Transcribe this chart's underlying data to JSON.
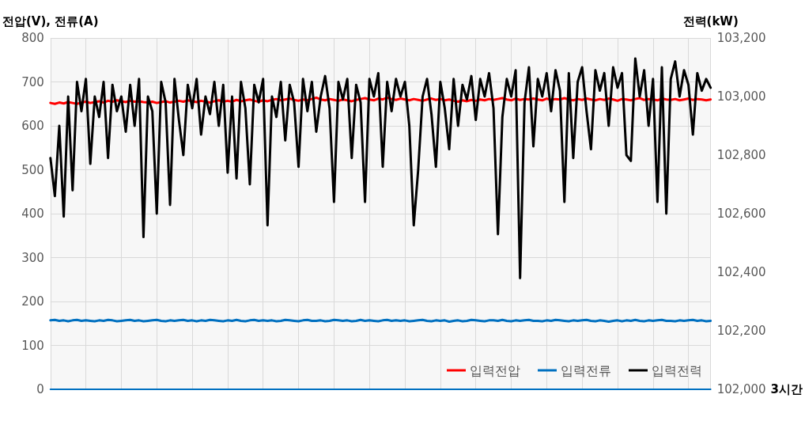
{
  "chart_data": {
    "type": "line",
    "ylabel": "전압(V), 전류(A)",
    "y2label": "전력(kW)",
    "xlabel": "3시간",
    "categories": [
      null,
      null,
      null,
      null,
      null,
      null,
      null,
      null,
      null,
      null,
      null,
      null,
      null,
      null,
      null,
      null,
      null,
      null,
      null,
      null,
      null,
      null,
      null,
      null,
      null,
      null,
      null,
      null,
      null,
      null,
      null,
      null,
      null,
      null,
      null,
      null,
      null,
      null,
      null,
      null,
      null,
      null,
      null,
      null,
      null,
      null,
      null,
      null,
      null,
      null,
      null,
      null,
      null,
      null,
      null,
      null,
      null,
      null,
      null,
      null,
      null,
      null,
      null,
      null,
      null,
      null,
      null,
      null,
      null,
      null,
      null,
      null,
      null,
      null,
      null,
      null,
      null,
      null,
      null,
      null,
      null,
      null,
      null,
      null,
      null,
      null,
      null,
      null,
      null,
      null,
      null,
      null,
      null,
      null,
      null,
      null,
      null,
      null,
      null,
      null,
      null,
      null,
      null,
      null,
      null,
      null,
      null,
      null,
      null,
      null,
      null,
      null,
      null,
      null,
      null,
      null,
      null,
      null,
      null,
      null,
      null,
      null,
      null,
      null,
      null,
      null,
      null,
      null,
      null,
      null,
      null,
      null,
      null,
      null,
      null,
      null,
      null,
      null,
      null,
      null,
      null,
      null,
      null,
      null,
      null,
      null,
      null,
      null,
      null,
      null
    ],
    "series": [
      {
        "name": "입력전압",
        "color": "#ff0000",
        "values": [
          652,
          650,
          653,
          651,
          654,
          652,
          650,
          653,
          655,
          652,
          654,
          656,
          653,
          657,
          655,
          658,
          656,
          654,
          657,
          655,
          656,
          654,
          653,
          655,
          652,
          654,
          656,
          653,
          655,
          657,
          655,
          658,
          656,
          654,
          657,
          655,
          653,
          656,
          658,
          655,
          657,
          655,
          659,
          656,
          658,
          660,
          657,
          655,
          658,
          656,
          659,
          661,
          658,
          660,
          662,
          659,
          657,
          660,
          658,
          661,
          664,
          660,
          658,
          661,
          659,
          657,
          660,
          658,
          656,
          659,
          661,
          663,
          660,
          658,
          662,
          660,
          664,
          661,
          659,
          662,
          660,
          658,
          661,
          659,
          657,
          660,
          662,
          659,
          661,
          658,
          660,
          657,
          655,
          658,
          656,
          659,
          657,
          660,
          658,
          661,
          659,
          661,
          663,
          660,
          658,
          662,
          659,
          661,
          660,
          662,
          660,
          658,
          662,
          659,
          661,
          660,
          663,
          660,
          658,
          661,
          659,
          662,
          660,
          658,
          661,
          659,
          662,
          660,
          657,
          661,
          660,
          658,
          661,
          663,
          659,
          661,
          660,
          658,
          662,
          660,
          659,
          661,
          658,
          660,
          662,
          659,
          661,
          660,
          658,
          660
        ]
      },
      {
        "name": "입력전류",
        "color": "#0070c0",
        "values": [
          157,
          158,
          156,
          157,
          155,
          157,
          158,
          156,
          157,
          156,
          155,
          157,
          156,
          158,
          157,
          155,
          156,
          157,
          158,
          156,
          157,
          155,
          156,
          157,
          158,
          156,
          155,
          157,
          156,
          157,
          158,
          156,
          157,
          155,
          157,
          156,
          158,
          157,
          156,
          155,
          157,
          156,
          158,
          156,
          155,
          157,
          158,
          156,
          157,
          156,
          157,
          155,
          156,
          158,
          157,
          156,
          155,
          157,
          158,
          156,
          156,
          157,
          155,
          156,
          158,
          157,
          156,
          157,
          155,
          156,
          158,
          156,
          157,
          156,
          155,
          157,
          158,
          156,
          157,
          156,
          157,
          155,
          156,
          157,
          158,
          156,
          155,
          157,
          156,
          157,
          154,
          156,
          157,
          155,
          156,
          158,
          157,
          156,
          155,
          157,
          157,
          156,
          158,
          156,
          155,
          157,
          156,
          157,
          158,
          156,
          156,
          155,
          157,
          156,
          158,
          157,
          156,
          155,
          157,
          156,
          157,
          158,
          156,
          155,
          157,
          156,
          154,
          156,
          157,
          155,
          157,
          156,
          158,
          156,
          155,
          157,
          156,
          157,
          158,
          156,
          156,
          155,
          157,
          156,
          157,
          158,
          156,
          157,
          155,
          156
        ]
      },
      {
        "name": "입력전력",
        "color": "#000000",
        "axis": "y2",
        "values": [
          102790,
          102660,
          102900,
          102590,
          103000,
          102680,
          103050,
          102950,
          103060,
          102770,
          103000,
          102930,
          103050,
          102790,
          103040,
          102950,
          103000,
          102880,
          103040,
          102900,
          103060,
          102520,
          103000,
          102950,
          102600,
          103050,
          102980,
          102630,
          103060,
          102920,
          102800,
          103040,
          102960,
          103060,
          102870,
          103000,
          102940,
          103050,
          102900,
          103040,
          102740,
          103000,
          102720,
          103050,
          102960,
          102700,
          103040,
          102980,
          103060,
          102560,
          103000,
          102930,
          103050,
          102850,
          103040,
          102980,
          102760,
          103060,
          102950,
          103050,
          102880,
          103000,
          103070,
          102960,
          102640,
          103050,
          102990,
          103060,
          102790,
          103040,
          102980,
          102640,
          103060,
          103000,
          103080,
          102760,
          103050,
          102950,
          103060,
          103000,
          103050,
          102900,
          102560,
          102750,
          103000,
          103060,
          102940,
          102760,
          103050,
          102960,
          102820,
          103060,
          102900,
          103040,
          102990,
          103070,
          102920,
          103060,
          103000,
          103080,
          102960,
          102530,
          102930,
          103060,
          103000,
          103090,
          102380,
          102980,
          103100,
          102830,
          103060,
          103000,
          103080,
          102950,
          103090,
          103020,
          102640,
          103080,
          102790,
          103050,
          103100,
          102950,
          102820,
          103090,
          103020,
          103080,
          102900,
          103100,
          103030,
          103080,
          102800,
          102780,
          103130,
          103000,
          103090,
          102900,
          103060,
          102640,
          103100,
          102600,
          103060,
          103120,
          103000,
          103090,
          103040,
          102870,
          103080,
          103020,
          103060,
          103030
        ]
      }
    ],
    "ylim": [
      0,
      800
    ],
    "yticks": [
      0,
      100,
      200,
      300,
      400,
      500,
      600,
      700,
      800
    ],
    "y2lim": [
      102000,
      103200
    ],
    "y2ticks": [
      {
        "value": 102000,
        "label": "102,000"
      },
      {
        "value": 102200,
        "label": "102,200"
      },
      {
        "value": 102400,
        "label": "102,400"
      },
      {
        "value": 102600,
        "label": "102,600"
      },
      {
        "value": 102800,
        "label": "102,800"
      },
      {
        "value": 103000,
        "label": "103,000"
      },
      {
        "value": 103200,
        "label": "103,200"
      }
    ],
    "grid": true,
    "legend": "bottom right",
    "marker": "none",
    "line_style": "solid"
  }
}
